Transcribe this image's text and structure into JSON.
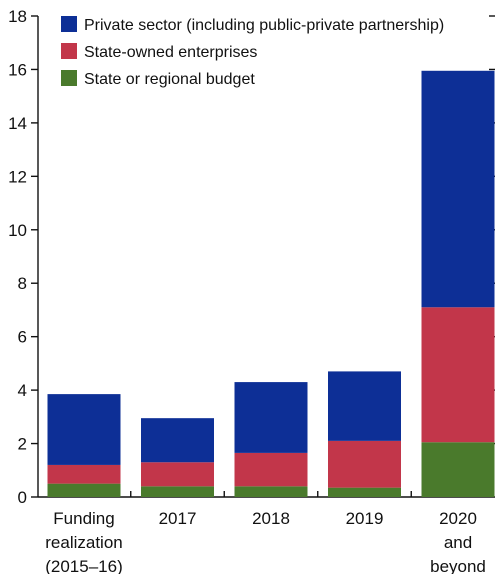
{
  "chart_data": {
    "type": "bar",
    "stacked": true,
    "categories": [
      [
        "Funding",
        "realization",
        "(2015–16)"
      ],
      [
        "2017"
      ],
      [
        "2018"
      ],
      [
        "2019"
      ],
      [
        "2020",
        "and",
        "beyond"
      ]
    ],
    "series": [
      {
        "name": "State or regional budget",
        "color": "#4a7a2c",
        "values": [
          0.5,
          0.4,
          0.4,
          0.35,
          2.05
        ]
      },
      {
        "name": "State-owned enterprises",
        "color": "#c2364a",
        "values": [
          0.7,
          0.9,
          1.25,
          1.75,
          5.05
        ]
      },
      {
        "name": "Private sector (including public-private partnership)",
        "color": "#0d2f96",
        "values": [
          2.65,
          1.65,
          2.65,
          2.6,
          8.85
        ]
      }
    ],
    "legend_order": [
      2,
      1,
      0
    ],
    "legend_position": "top-left",
    "ylim": [
      0,
      18
    ],
    "yticks": [
      0,
      2,
      4,
      6,
      8,
      10,
      12,
      14,
      16,
      18
    ],
    "right_axis_ticks": true,
    "grid": false
  }
}
